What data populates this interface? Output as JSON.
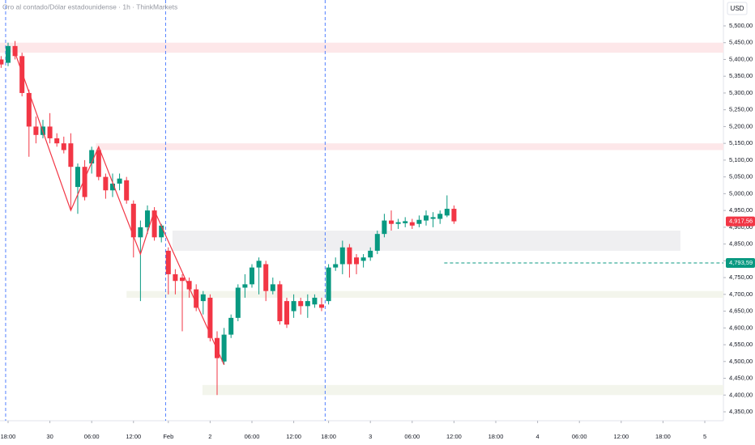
{
  "chart_data": {
    "type": "candlestick",
    "title": "Oro al contado/Dólar estadounidense · 1h · ThinkMarkets",
    "currency": "USD",
    "up_color": "#089981",
    "down_color": "#f23645",
    "x": [
      -1,
      0,
      1,
      2,
      3,
      4,
      5,
      6,
      7,
      8,
      9,
      10,
      11,
      12,
      13,
      14,
      15,
      16,
      17,
      18,
      19,
      20,
      21,
      22,
      23,
      24,
      25,
      26,
      27,
      28,
      29,
      30,
      31,
      32,
      33,
      34,
      35,
      36,
      37,
      38,
      39,
      40,
      41,
      42,
      43,
      44,
      45,
      46,
      47,
      48,
      49,
      50,
      51,
      52,
      53,
      54,
      55,
      56,
      57,
      58,
      59,
      60,
      61,
      62,
      63,
      64
    ],
    "open": [
      5400,
      5390,
      5440,
      5410,
      5300,
      5200,
      5175,
      5200,
      5165,
      5150,
      5150,
      5020,
      5080,
      5090,
      5130,
      5050,
      5010,
      5030,
      5040,
      4970,
      4870,
      4900,
      4950,
      4870,
      4830,
      4760,
      4750,
      4740,
      4715,
      4680,
      4690,
      4570,
      4500,
      4580,
      4630,
      4720,
      4730,
      4780,
      4790,
      4710,
      4730,
      4680,
      4650,
      4680,
      4665,
      4670,
      4670,
      4680,
      4780,
      4790,
      4840,
      4810,
      4800,
      4810,
      4830,
      4880,
      4920,
      4910,
      4912,
      4915,
      4910,
      4920,
      4925,
      4925,
      4935,
      4955
    ],
    "high": [
      5410,
      5450,
      5455,
      5420,
      5310,
      5230,
      5220,
      5240,
      5180,
      5170,
      5180,
      5090,
      5100,
      5140,
      5140,
      5060,
      5060,
      5060,
      5050,
      4980,
      4920,
      4965,
      4960,
      4910,
      4840,
      4775,
      4760,
      4750,
      4730,
      4710,
      4700,
      4590,
      4600,
      4640,
      4730,
      4760,
      4790,
      4810,
      4800,
      4750,
      4740,
      4690,
      4700,
      4690,
      4700,
      4700,
      4690,
      4790,
      4810,
      4860,
      4850,
      4820,
      4820,
      4840,
      4890,
      4940,
      4950,
      4925,
      4930,
      4925,
      4935,
      4950,
      4945,
      4950,
      4995,
      4965
    ],
    "low": [
      5375,
      5380,
      5400,
      5290,
      5110,
      5150,
      5165,
      5150,
      5140,
      5120,
      4950,
      4940,
      4980,
      5060,
      5040,
      4985,
      4990,
      5010,
      4970,
      4810,
      4680,
      4880,
      4860,
      4855,
      4700,
      4700,
      4590,
      4690,
      4650,
      4640,
      4560,
      4400,
      4490,
      4570,
      4620,
      4690,
      4720,
      4700,
      4680,
      4700,
      4610,
      4600,
      4630,
      4640,
      4630,
      4660,
      4650,
      4670,
      4770,
      4760,
      4750,
      4760,
      4780,
      4800,
      4820,
      4870,
      4890,
      4895,
      4900,
      4895,
      4900,
      4905,
      4900,
      4910,
      4930,
      4910
    ],
    "close": [
      5385,
      5440,
      5410,
      5300,
      5200,
      5175,
      5200,
      5165,
      5150,
      5130,
      5080,
      5080,
      4990,
      5130,
      5050,
      5010,
      5030,
      5045,
      4980,
      4870,
      4900,
      4950,
      4870,
      4905,
      4760,
      4740,
      4740,
      4715,
      4660,
      4700,
      4570,
      4510,
      4580,
      4630,
      4720,
      4730,
      4780,
      4800,
      4710,
      4730,
      4620,
      4610,
      4680,
      4665,
      4680,
      4690,
      4660,
      4780,
      4790,
      4840,
      4790,
      4790,
      4810,
      4830,
      4880,
      4920,
      4910,
      4915,
      4918,
      4905,
      4922,
      4935,
      4930,
      4940,
      4955,
      4917.56
    ],
    "zones": [
      {
        "low": 5420,
        "high": 5450,
        "x0": -1.16,
        "x1": 102.67,
        "color": "#fde7e9"
      },
      {
        "low": 5130,
        "high": 5150,
        "x0": 12.6,
        "x1": 102.67,
        "color": "#fde7e9"
      },
      {
        "low": 4830,
        "high": 4890,
        "x0": 23.6,
        "x1": 96.5,
        "color": "#efeff1"
      },
      {
        "low": 4690,
        "high": 4710,
        "x0": 17,
        "x1": 102.67,
        "color": "#f3f5ec"
      },
      {
        "low": 4400,
        "high": 4430,
        "x0": 27.9,
        "x1": 102.67,
        "color": "#f3f5ec"
      }
    ],
    "zigzag": {
      "color": "#f23645",
      "x": [
        1,
        9,
        13,
        19,
        21,
        31
      ],
      "y": [
        5420,
        4950,
        5140,
        4820,
        4950,
        4490
      ]
    },
    "vlines": [
      -0.35,
      22.6,
      45.5
    ],
    "price_lines": [
      {
        "value": 4793.59,
        "label": "4,793,59",
        "x0": 62.6,
        "color": "#089981",
        "dashed": true
      },
      {
        "value": 4917.56,
        "label": "4,917,56",
        "x0": null,
        "color": "#f23645",
        "dashed": false
      }
    ],
    "xlim": [
      -1.16,
      102.67
    ],
    "ylim": [
      4323.5,
      5577.1
    ],
    "xticks": [
      {
        "value": 0,
        "label": "18:00"
      },
      {
        "value": 6,
        "label": "30"
      },
      {
        "value": 12,
        "label": "06:00"
      },
      {
        "value": 18,
        "label": "12:00"
      },
      {
        "value": 23,
        "label": "Feb"
      },
      {
        "value": 29,
        "label": "2"
      },
      {
        "value": 35,
        "label": "06:00"
      },
      {
        "value": 41,
        "label": "12:00"
      },
      {
        "value": 46,
        "label": "18:00"
      },
      {
        "value": 52,
        "label": "3"
      },
      {
        "value": 58,
        "label": "06:00"
      },
      {
        "value": 64,
        "label": "12:00"
      },
      {
        "value": 70,
        "label": "18:00"
      },
      {
        "value": 76,
        "label": "4"
      },
      {
        "value": 82,
        "label": "06:00"
      },
      {
        "value": 88,
        "label": "12:00"
      },
      {
        "value": 94,
        "label": "18:00"
      },
      {
        "value": 100,
        "label": "5"
      }
    ],
    "yticks": [
      {
        "value": 4350,
        "label": "4,350,00"
      },
      {
        "value": 4400,
        "label": "4,400,00"
      },
      {
        "value": 4450,
        "label": "4,450,00"
      },
      {
        "value": 4500,
        "label": "4,500,00"
      },
      {
        "value": 4550,
        "label": "4,550,00"
      },
      {
        "value": 4600,
        "label": "4,600,00"
      },
      {
        "value": 4650,
        "label": "4,650,00"
      },
      {
        "value": 4700,
        "label": "4,700,00"
      },
      {
        "value": 4750,
        "label": "4,750,00"
      },
      {
        "value": 4800,
        "label": "4,800,00"
      },
      {
        "value": 4850,
        "label": "4,850,00"
      },
      {
        "value": 4900,
        "label": "4,900,00"
      },
      {
        "value": 4950,
        "label": "4,950,00"
      },
      {
        "value": 5000,
        "label": "5,000,00"
      },
      {
        "value": 5050,
        "label": "5,050,00"
      },
      {
        "value": 5100,
        "label": "5,100,00"
      },
      {
        "value": 5150,
        "label": "5,150,00"
      },
      {
        "value": 5200,
        "label": "5,200,00"
      },
      {
        "value": 5250,
        "label": "5,250,00"
      },
      {
        "value": 5300,
        "label": "5,300,00"
      },
      {
        "value": 5350,
        "label": "5,350,00"
      },
      {
        "value": 5400,
        "label": "5,400,00"
      },
      {
        "value": 5450,
        "label": "5,450,00"
      },
      {
        "value": 5500,
        "label": "5,500,00"
      }
    ]
  }
}
